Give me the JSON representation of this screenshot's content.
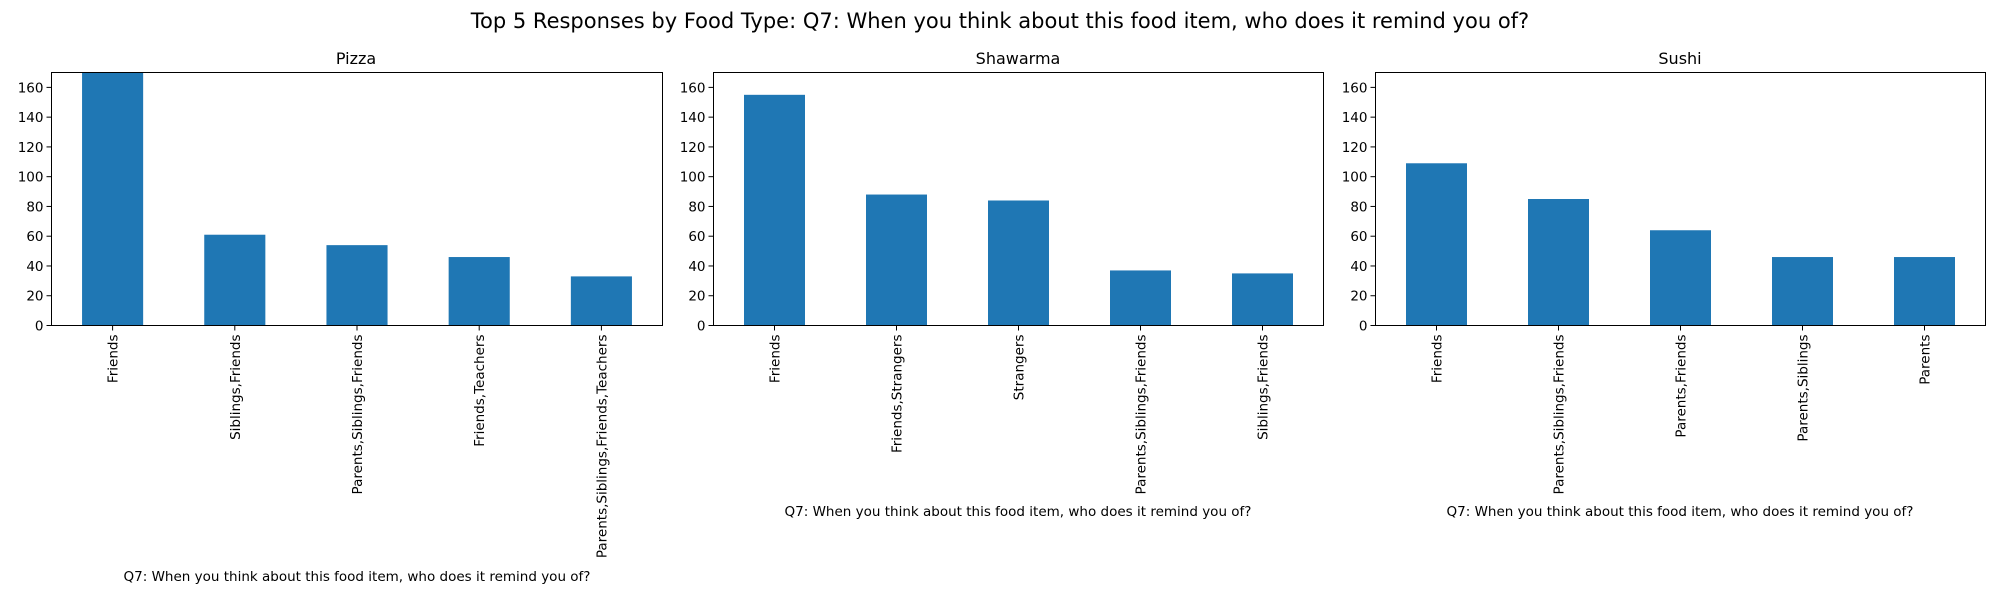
{
  "figure": {
    "title": "Top 5 Responses by Food Type: Q7: When you think about this food item, who does it remind you of?",
    "bar_color": "#1f77b4"
  },
  "chart_data": [
    {
      "type": "bar",
      "title": "Pizza",
      "xlabel": "Q7: When you think about this food item, who does it remind you of?",
      "ylabel": "",
      "categories": [
        "Friends",
        "Siblings,Friends",
        "Parents,Siblings,Friends",
        "Friends,Teachers",
        "Parents,Siblings,Friends,Teachers"
      ],
      "values": [
        172,
        61,
        54,
        46,
        33
      ],
      "ylim": [
        0,
        170
      ],
      "yticks": [
        0,
        20,
        40,
        60,
        80,
        100,
        120,
        140,
        160
      ],
      "grid": false
    },
    {
      "type": "bar",
      "title": "Shawarma",
      "xlabel": "Q7: When you think about this food item, who does it remind you of?",
      "ylabel": "",
      "categories": [
        "Friends",
        "Friends,Strangers",
        "Strangers",
        "Parents,Siblings,Friends",
        "Siblings,Friends"
      ],
      "values": [
        155,
        88,
        84,
        37,
        35
      ],
      "ylim": [
        0,
        170
      ],
      "yticks": [
        0,
        20,
        40,
        60,
        80,
        100,
        120,
        140,
        160
      ],
      "grid": false
    },
    {
      "type": "bar",
      "title": "Sushi",
      "xlabel": "Q7: When you think about this food item, who does it remind you of?",
      "ylabel": "",
      "categories": [
        "Friends",
        "Parents,Siblings,Friends",
        "Parents,Friends",
        "Parents,Siblings",
        "Parents"
      ],
      "values": [
        109,
        85,
        64,
        46,
        46
      ],
      "ylim": [
        0,
        170
      ],
      "yticks": [
        0,
        20,
        40,
        60,
        80,
        100,
        120,
        140,
        160
      ],
      "grid": false
    }
  ]
}
